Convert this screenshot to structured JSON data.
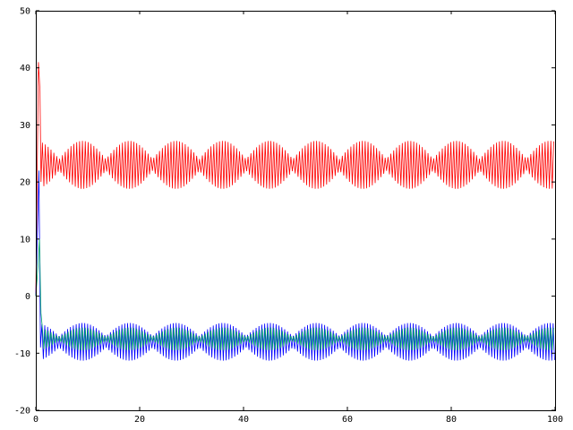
{
  "chart_data": {
    "type": "line",
    "title": "",
    "xlabel": "",
    "ylabel": "",
    "xlim": [
      0,
      100
    ],
    "ylim": [
      -20,
      50
    ],
    "grid": false,
    "legend": "none",
    "x_ticks": [
      0,
      20,
      40,
      60,
      80,
      100
    ],
    "y_ticks": [
      -20,
      -10,
      0,
      10,
      20,
      30,
      40,
      50
    ],
    "series": [
      {
        "color": "#ff0000",
        "style": "oscillating",
        "initial_spike": [
          [
            0,
            0
          ],
          [
            0.5,
            41
          ],
          [
            0.8,
            36
          ],
          [
            1.0,
            20
          ]
        ],
        "center": 23.0,
        "amplitude_min": 1.0,
        "amplitude_max": 4.2,
        "envelope_period": 9.0,
        "carrier_period": 0.55,
        "x_end": 100
      },
      {
        "color": "#0000ff",
        "style": "oscillating",
        "initial_spike": [
          [
            0,
            0
          ],
          [
            0.6,
            22
          ],
          [
            0.9,
            -9
          ]
        ],
        "center": -8.0,
        "amplitude_min": 1.0,
        "amplitude_max": 3.3,
        "envelope_period": 9.0,
        "carrier_period": 0.55,
        "x_end": 100
      },
      {
        "color": "#00aa66",
        "style": "oscillating",
        "initial_spike": [
          [
            0,
            0
          ],
          [
            0.4,
            5
          ],
          [
            0.7,
            10
          ],
          [
            1.0,
            -3
          ]
        ],
        "center": -7.5,
        "amplitude_min": 0.3,
        "amplitude_max": 2.0,
        "envelope_period": 9.0,
        "carrier_period": 0.55,
        "x_end": 100
      }
    ]
  }
}
